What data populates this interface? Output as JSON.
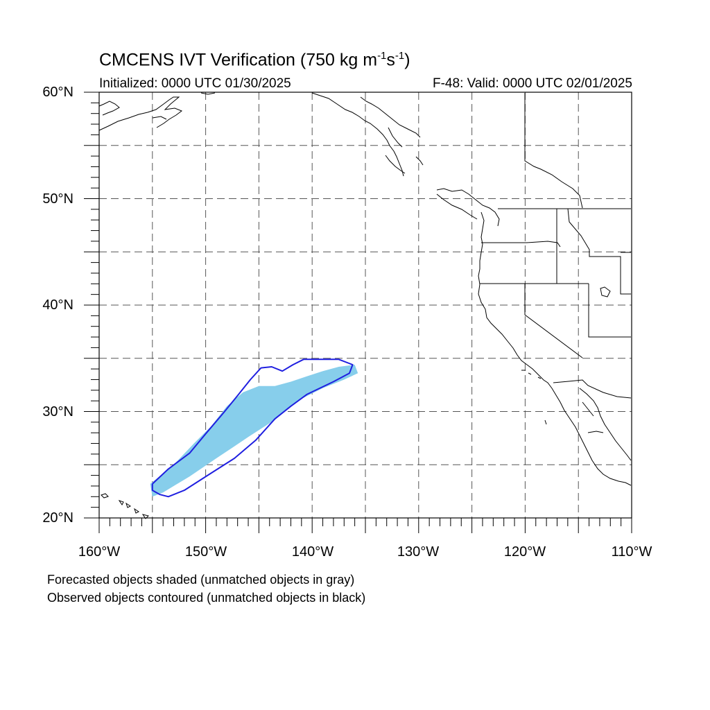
{
  "title": {
    "text": "CMCENS IVT Verification (750 kg m",
    "exp1": "-1",
    "mid": "s",
    "exp2": "-1",
    "end": ")"
  },
  "initialized": "Initialized: 0000 UTC 01/30/2025",
  "valid": "F-48: Valid: 0000 UTC 02/01/2025",
  "y_ticks": [
    "60°N",
    "50°N",
    "40°N",
    "30°N",
    "20°N"
  ],
  "x_ticks": [
    "160°W",
    "150°W",
    "140°W",
    "130°W",
    "120°W",
    "110°W"
  ],
  "notes": [
    "Forecasted objects shaded (unmatched objects in gray)",
    "Observed objects contoured (unmatched objects in black)"
  ],
  "colors": {
    "forecast_fill": "#87CEEB",
    "observed_contour": "#1f1fe0",
    "coastline": "#000000",
    "grid": "#555555"
  },
  "chart_data": {
    "type": "map",
    "projection": "cylindrical-equidistant",
    "lon_range": [
      -160,
      -110
    ],
    "lat_range": [
      20,
      60
    ],
    "grid": "dashed every 5 degrees",
    "forecast_object_lonlat": [
      [
        -155,
        22
      ],
      [
        -155.2,
        23.2
      ],
      [
        -153,
        25
      ],
      [
        -151,
        27.1
      ],
      [
        -149.5,
        28.6
      ],
      [
        -148,
        30.5
      ],
      [
        -146.5,
        31.8
      ],
      [
        -145,
        32.4
      ],
      [
        -143.5,
        32.4
      ],
      [
        -142,
        32.8
      ],
      [
        -140.5,
        33.3
      ],
      [
        -139,
        33.8
      ],
      [
        -137.5,
        34.2
      ],
      [
        -136,
        34.4
      ],
      [
        -135.7,
        33.6
      ],
      [
        -137,
        33
      ],
      [
        -139,
        32.2
      ],
      [
        -141,
        31.2
      ],
      [
        -142.3,
        30.2
      ],
      [
        -144,
        28.9
      ],
      [
        -146,
        27.6
      ],
      [
        -147.5,
        26.6
      ],
      [
        -149,
        25.6
      ],
      [
        -151.5,
        23.9
      ],
      [
        -154,
        22.4
      ]
    ],
    "observed_contour_lonlat": [
      [
        -155,
        23.2
      ],
      [
        -153.5,
        24.6
      ],
      [
        -151.5,
        26.1
      ],
      [
        -150,
        27.9
      ],
      [
        -148.3,
        29.9
      ],
      [
        -147,
        31.5
      ],
      [
        -145.8,
        33
      ],
      [
        -144.8,
        34.1
      ],
      [
        -143.8,
        34.2
      ],
      [
        -142.8,
        33.8
      ],
      [
        -141.8,
        34.4
      ],
      [
        -140.8,
        34.9
      ],
      [
        -137.5,
        34.9
      ],
      [
        -136.2,
        34.4
      ],
      [
        -136.5,
        33.6
      ],
      [
        -138,
        32.8
      ],
      [
        -140.5,
        31.6
      ],
      [
        -142,
        30.5
      ],
      [
        -143.5,
        29.3
      ],
      [
        -145.3,
        27.3
      ],
      [
        -147.3,
        25.6
      ],
      [
        -149.5,
        24.2
      ],
      [
        -152,
        22.6
      ],
      [
        -153.5,
        22
      ],
      [
        -154.3,
        22.2
      ],
      [
        -155,
        22.6
      ],
      [
        -155,
        23.2
      ]
    ]
  }
}
